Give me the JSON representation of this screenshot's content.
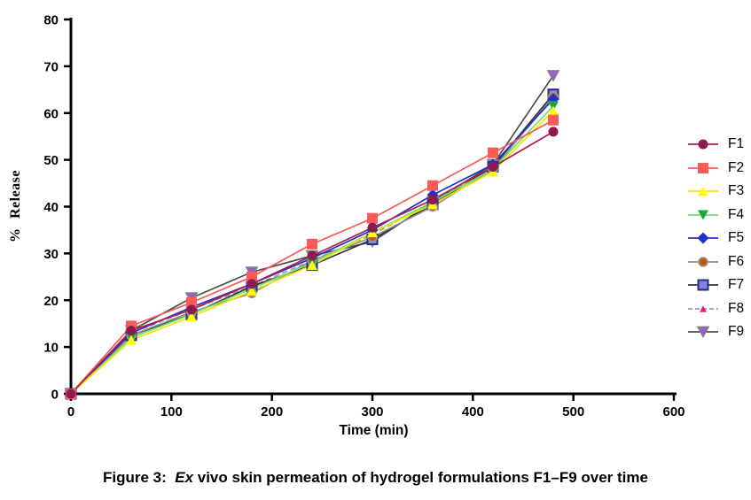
{
  "figure": {
    "caption_prefix": "Figure 3:  ",
    "caption_italic": "Ex",
    "caption_rest": " vivo skin permeation of hydrogel formulations F1–F9 over time"
  },
  "chart_data": {
    "type": "line",
    "title": "",
    "xlabel": "Time (min)",
    "ylabel": "% Release",
    "xlim": [
      0,
      600
    ],
    "ylim": [
      0,
      80
    ],
    "x_ticks": [
      0,
      100,
      200,
      300,
      400,
      500,
      600
    ],
    "y_ticks": [
      0,
      10,
      20,
      30,
      40,
      50,
      60,
      70,
      80
    ],
    "grid": false,
    "legend_position": "right",
    "x": [
      0,
      60,
      120,
      180,
      240,
      300,
      360,
      420,
      480
    ],
    "series": [
      {
        "name": "F1",
        "marker": "circle",
        "marker_size": 11,
        "marker_color": "#8E1A4E",
        "marker_stroke": "none",
        "marker_stroke_width": 0,
        "line_color": "#B01E50",
        "line_dash": "",
        "values": [
          0,
          13.5,
          18,
          23.5,
          29.5,
          35.5,
          41.5,
          48.5,
          56
        ]
      },
      {
        "name": "F2",
        "marker": "square",
        "marker_size": 12,
        "marker_color": "#FA5B57",
        "marker_stroke": "none",
        "marker_stroke_width": 0,
        "line_color": "#FA5B57",
        "line_dash": "",
        "values": [
          0,
          14.5,
          19.5,
          25,
          32,
          37.5,
          44.5,
          51.5,
          58.5
        ]
      },
      {
        "name": "F3",
        "marker": "triangle-up",
        "marker_size": 12,
        "marker_color": "#FFFF00",
        "marker_stroke": "none",
        "marker_stroke_width": 0,
        "line_color": "#F2E500",
        "line_dash": "",
        "values": [
          0,
          11.5,
          16.5,
          22,
          27.5,
          34.5,
          40.5,
          47.5,
          60.5
        ]
      },
      {
        "name": "F4",
        "marker": "triangle-down",
        "marker_size": 12,
        "marker_color": "#17A93C",
        "marker_stroke": "none",
        "marker_stroke_width": 0,
        "line_color": "#6FE26F",
        "line_dash": "",
        "values": [
          0,
          12,
          17,
          22.5,
          28,
          34.5,
          41,
          48,
          61.5
        ]
      },
      {
        "name": "F5",
        "marker": "diamond",
        "marker_size": 11,
        "marker_color": "#2330CC",
        "marker_stroke": "none",
        "marker_stroke_width": 0,
        "line_color": "#2330CC",
        "line_dash": "",
        "values": [
          0,
          13,
          18.5,
          23.5,
          29,
          35,
          42.5,
          49,
          63
        ]
      },
      {
        "name": "F6",
        "marker": "circle",
        "marker_size": 10,
        "marker_color": "#C1570E",
        "marker_stroke": "#999999",
        "marker_stroke_width": 1.6,
        "line_color": "#909090",
        "line_dash": "",
        "values": [
          0,
          12.5,
          17.5,
          21.5,
          28.5,
          33.5,
          40,
          48,
          63.5
        ]
      },
      {
        "name": "F7",
        "marker": "square",
        "marker_size": 11,
        "marker_color": "#7D86DC",
        "marker_stroke": "#2B2B8C",
        "marker_stroke_width": 2,
        "line_color": "#333333",
        "line_dash": "",
        "values": [
          0,
          12.5,
          17,
          23,
          27.5,
          33,
          40.5,
          48.5,
          64
        ]
      },
      {
        "name": "F8",
        "marker": "triangle-up",
        "marker_size": 8,
        "marker_color": "#EB168C",
        "marker_stroke": "none",
        "marker_stroke_width": 0,
        "line_color": "#9B9B9B",
        "line_dash": "6,4",
        "values": [
          0,
          13,
          18,
          23,
          28.5,
          34,
          41,
          48.5,
          63.5
        ]
      },
      {
        "name": "F9",
        "marker": "triangle-down",
        "marker_size": 12,
        "marker_color": "#A259CE",
        "marker_stroke": "#808080",
        "marker_stroke_width": 1.6,
        "line_color": "#4D4D4D",
        "line_dash": "",
        "values": [
          0,
          13.5,
          20.5,
          26,
          29.5,
          32.5,
          41,
          49,
          68
        ]
      }
    ]
  }
}
